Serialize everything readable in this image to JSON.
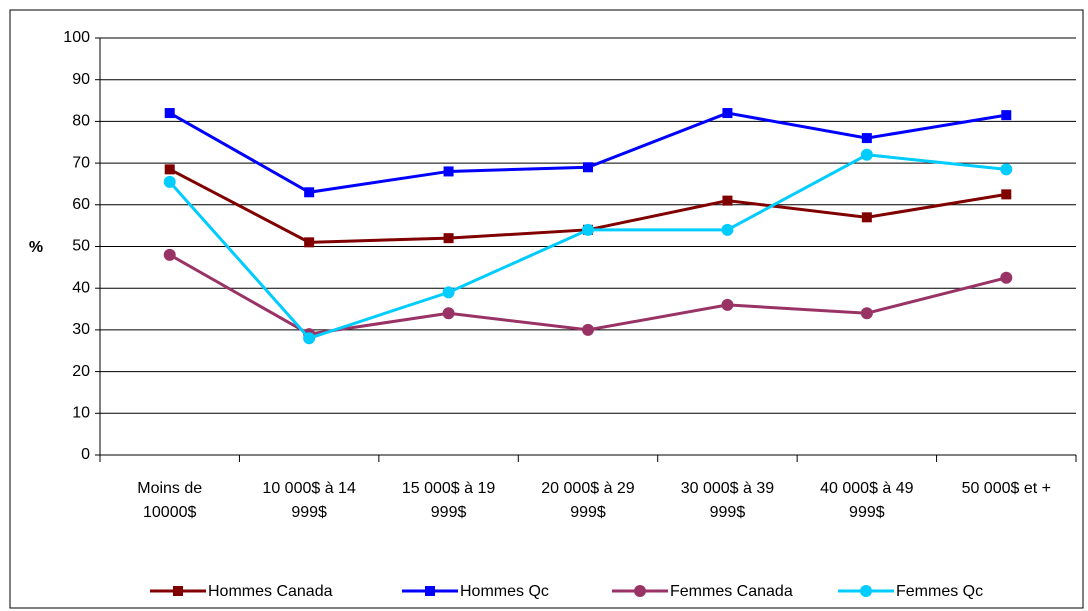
{
  "chart_data": {
    "type": "line",
    "ylabel": "%",
    "categories": [
      "Moins de 10000$",
      "10 000$ à 14 999$",
      "15 000$ à 19 999$",
      "20 000$ à 29 999$",
      "30 000$ à 39 999$",
      "40 000$ à 49 999$",
      "50 000$ et +"
    ],
    "series": [
      {
        "name": "Hommes Canada",
        "color": "#800000",
        "marker": "square",
        "values": [
          68.5,
          51,
          52,
          54,
          61,
          57,
          62.5
        ]
      },
      {
        "name": "Hommes Qc",
        "color": "#0000ff",
        "marker": "square",
        "values": [
          82,
          63,
          68,
          69,
          82,
          76,
          81.5
        ]
      },
      {
        "name": "Femmes Canada",
        "color": "#993366",
        "marker": "circle",
        "values": [
          48,
          29,
          34,
          30,
          36,
          34,
          42.5
        ]
      },
      {
        "name": "Femmes Qc",
        "color": "#00ccff",
        "marker": "circle",
        "values": [
          65.5,
          28,
          39,
          54,
          54,
          72,
          68.5
        ]
      }
    ],
    "ylim": [
      0,
      100
    ],
    "yticks": [
      0,
      10,
      20,
      30,
      40,
      50,
      60,
      70,
      80,
      90,
      100
    ],
    "grid": true,
    "legend": "bottom"
  }
}
